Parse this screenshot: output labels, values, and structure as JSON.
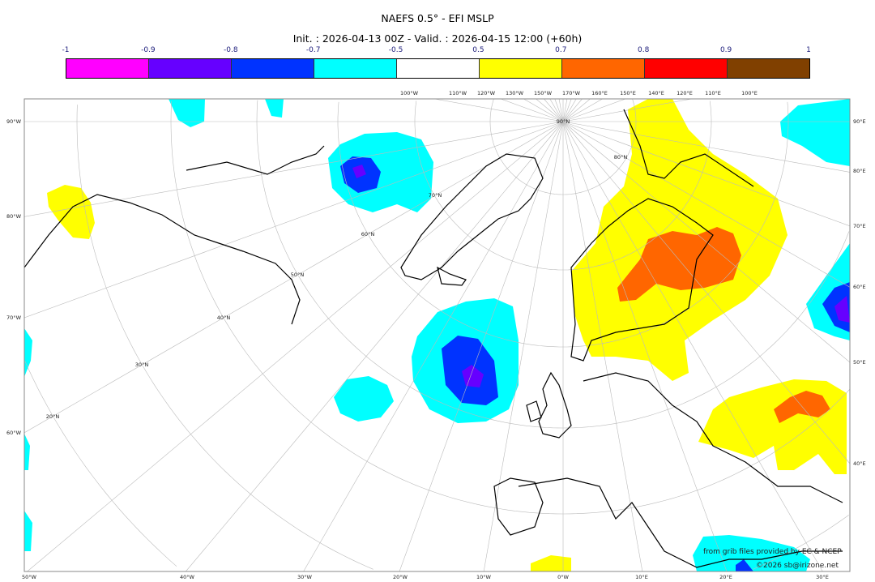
{
  "title": "NAEFS 0.5° - EFI MSLP",
  "subtitle": "Init. : 2026-04-13 00Z - Valid. : 2026-04-15 12:00 (+60h)",
  "colorbar": {
    "ticks": [
      "-1",
      "-0.9",
      "-0.8",
      "-0.7",
      "-0.5",
      "0.5",
      "0.7",
      "0.8",
      "0.9",
      "1"
    ],
    "colors": [
      "#ff00ff",
      "#6600ff",
      "#0033ff",
      "#00ffff",
      "#ffffff",
      "#ffff00",
      "#ff6600",
      "#ff0000",
      "#804000"
    ]
  },
  "axes": {
    "top": [
      "100°W",
      "110°W",
      "120°W",
      "130°W",
      "150°W",
      "170°W",
      "160°E",
      "150°E",
      "140°E",
      "120°E",
      "110°E",
      "100°E"
    ],
    "left": [
      "90°W",
      "80°W",
      "70°W",
      "60°W"
    ],
    "right": [
      "90°E",
      "80°E",
      "70°E",
      "60°E",
      "50°E",
      "40°E"
    ],
    "bottom": [
      "50°W",
      "40°W",
      "30°W",
      "20°W",
      "10°W",
      "0°W",
      "10°E",
      "20°E",
      "30°E"
    ],
    "latitudes": [
      "90°N",
      "80°N",
      "70°N",
      "60°N",
      "50°N",
      "40°N",
      "30°N",
      "20°N"
    ]
  },
  "credits": {
    "source": "from grib files provided by EC & NCEP",
    "copyright": "©2026 sb@irizone.net"
  }
}
